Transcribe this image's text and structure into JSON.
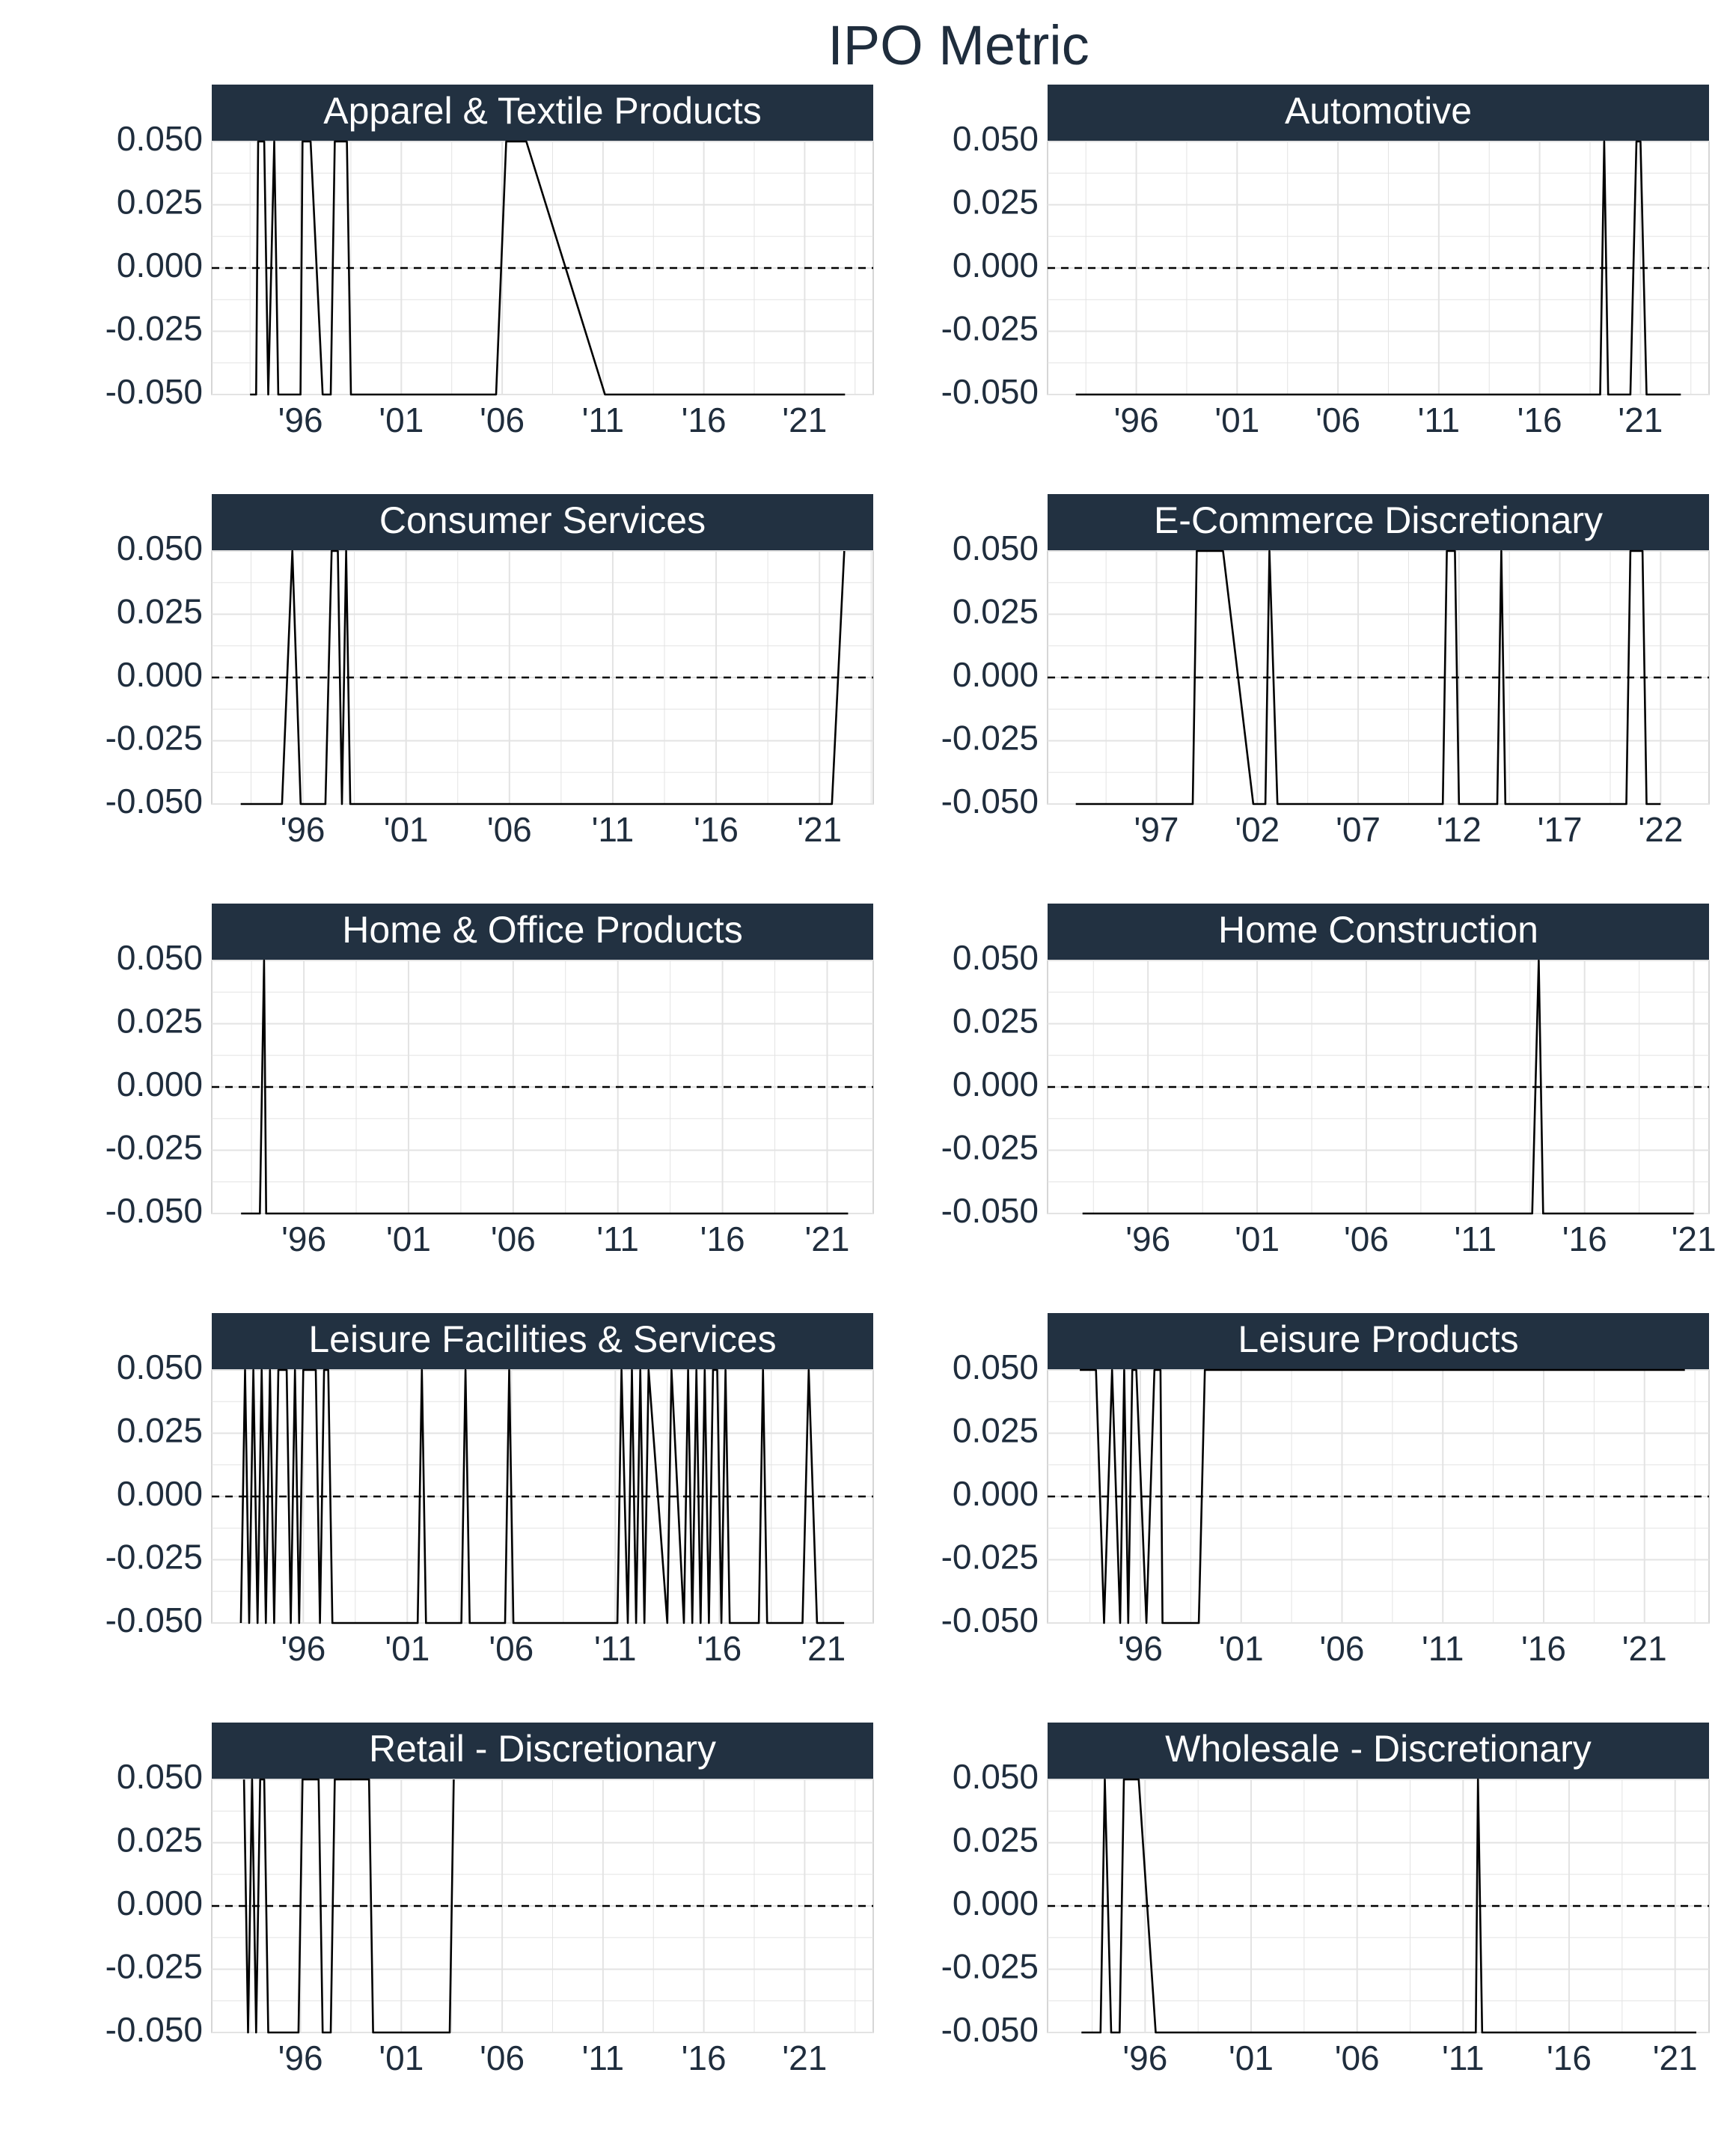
{
  "title": "IPO Metric",
  "colors": {
    "strip": "#223141",
    "text": "#1f2d3d",
    "line": "#000000",
    "grid": "#e3e3e3",
    "panel_border": "#c9c9c9",
    "zero_line": "#000000"
  },
  "chart_data": [
    {
      "type": "line",
      "panel": "Apparel & Textile Products",
      "ylim": [
        -0.05,
        0.05
      ],
      "xlim": [
        1991.6,
        2024.4
      ],
      "y_ticks": [
        0.05,
        0.025,
        0.0,
        -0.025,
        -0.05
      ],
      "y_tick_labels": [
        "0.050",
        "0.025",
        "0.000",
        "-0.025",
        "-0.050"
      ],
      "x_ticks": [
        1996,
        2001,
        2006,
        2011,
        2016,
        2021
      ],
      "x_tick_labels": [
        "'96",
        "'01",
        "'06",
        "'11",
        "'16",
        "'21"
      ],
      "reference_line": {
        "y": 0.0,
        "style": "dashed"
      },
      "series": [
        {
          "x": [
            1993.5,
            1993.8,
            1993.9,
            1994.2,
            1994.4,
            1994.7,
            1994.9,
            1996.0,
            1996.1,
            1996.5,
            1997.1,
            1997.5,
            1997.7,
            1998.3,
            1998.5,
            2005.7,
            2006.2,
            2007.2,
            2011.1,
            2023.0
          ],
          "y": [
            -0.05,
            -0.05,
            0.05,
            0.05,
            -0.05,
            0.05,
            -0.05,
            -0.05,
            0.05,
            0.05,
            -0.05,
            -0.05,
            0.05,
            0.05,
            -0.05,
            -0.05,
            0.05,
            0.05,
            -0.05,
            -0.05
          ]
        }
      ]
    },
    {
      "type": "line",
      "panel": "Automotive",
      "ylim": [
        -0.05,
        0.05
      ],
      "xlim": [
        1991.6,
        2024.4
      ],
      "y_ticks": [
        0.05,
        0.025,
        0.0,
        -0.025,
        -0.05
      ],
      "y_tick_labels": [
        "0.050",
        "0.025",
        "0.000",
        "-0.025",
        "-0.050"
      ],
      "x_ticks": [
        1996,
        2001,
        2006,
        2011,
        2016,
        2021
      ],
      "x_tick_labels": [
        "'96",
        "'01",
        "'06",
        "'11",
        "'16",
        "'21"
      ],
      "reference_line": {
        "y": 0.0,
        "style": "dashed"
      },
      "series": [
        {
          "x": [
            1993.0,
            2019.0,
            2019.2,
            2019.4,
            2020.5,
            2020.8,
            2021.0,
            2021.3,
            2023.0
          ],
          "y": [
            -0.05,
            -0.05,
            0.05,
            -0.05,
            -0.05,
            0.05,
            0.05,
            -0.05,
            -0.05
          ]
        }
      ]
    },
    {
      "type": "line",
      "panel": "Consumer Services",
      "ylim": [
        -0.05,
        0.05
      ],
      "xlim": [
        1991.6,
        2023.6
      ],
      "y_ticks": [
        0.05,
        0.025,
        0.0,
        -0.025,
        -0.05
      ],
      "y_tick_labels": [
        "0.050",
        "0.025",
        "0.000",
        "-0.025",
        "-0.050"
      ],
      "x_ticks": [
        1996,
        2001,
        2006,
        2011,
        2016,
        2021
      ],
      "x_tick_labels": [
        "'96",
        "'01",
        "'06",
        "'11",
        "'16",
        "'21"
      ],
      "reference_line": {
        "y": 0.0,
        "style": "dashed"
      },
      "series": [
        {
          "x": [
            1993.0,
            1995.0,
            1995.5,
            1995.9,
            1997.1,
            1997.4,
            1997.7,
            1997.9,
            1998.1,
            1998.3,
            2021.6,
            2022.2
          ],
          "y": [
            -0.05,
            -0.05,
            0.05,
            -0.05,
            -0.05,
            0.05,
            0.05,
            -0.05,
            0.05,
            -0.05,
            -0.05,
            0.05
          ]
        }
      ]
    },
    {
      "type": "line",
      "panel": "E-Commerce Discretionary",
      "ylim": [
        -0.05,
        0.05
      ],
      "xlim": [
        1991.6,
        2024.4
      ],
      "y_ticks": [
        0.05,
        0.025,
        0.0,
        -0.025,
        -0.05
      ],
      "y_tick_labels": [
        "0.050",
        "0.025",
        "0.000",
        "-0.025",
        "-0.050"
      ],
      "x_ticks": [
        1997,
        2002,
        2007,
        2012,
        2017,
        2022
      ],
      "x_tick_labels": [
        "'97",
        "'02",
        "'07",
        "'12",
        "'17",
        "'22"
      ],
      "reference_line": {
        "y": 0.0,
        "style": "dashed"
      },
      "series": [
        {
          "x": [
            1993.0,
            1998.8,
            1999.0,
            1999.2,
            2000.3,
            2001.8,
            2002.4,
            2002.6,
            2003.0,
            2004.0,
            2011.2,
            2011.4,
            2011.8,
            2012.0,
            2013.9,
            2014.1,
            2014.3,
            2020.3,
            2020.5,
            2021.1,
            2021.3,
            2022.0
          ],
          "y": [
            -0.05,
            -0.05,
            0.05,
            0.05,
            0.05,
            -0.05,
            -0.05,
            0.05,
            -0.05,
            -0.05,
            -0.05,
            0.05,
            0.05,
            -0.05,
            -0.05,
            0.05,
            -0.05,
            -0.05,
            0.05,
            0.05,
            -0.05,
            -0.05
          ]
        }
      ]
    },
    {
      "type": "line",
      "panel": "Home & Office Products",
      "ylim": [
        -0.05,
        0.05
      ],
      "xlim": [
        1991.6,
        2023.2
      ],
      "y_ticks": [
        0.05,
        0.025,
        0.0,
        -0.025,
        -0.05
      ],
      "y_tick_labels": [
        "0.050",
        "0.025",
        "0.000",
        "-0.025",
        "-0.050"
      ],
      "x_ticks": [
        1996,
        2001,
        2006,
        2011,
        2016,
        2021
      ],
      "x_tick_labels": [
        "'96",
        "'01",
        "'06",
        "'11",
        "'16",
        "'21"
      ],
      "reference_line": {
        "y": 0.0,
        "style": "dashed"
      },
      "series": [
        {
          "x": [
            1993.0,
            1993.9,
            1994.1,
            1994.2,
            2022.0
          ],
          "y": [
            -0.05,
            -0.05,
            0.05,
            -0.05,
            -0.05
          ]
        }
      ]
    },
    {
      "type": "line",
      "panel": "Home Construction",
      "ylim": [
        -0.05,
        0.05
      ],
      "xlim": [
        1991.4,
        2021.7
      ],
      "y_ticks": [
        0.05,
        0.025,
        0.0,
        -0.025,
        -0.05
      ],
      "y_tick_labels": [
        "0.050",
        "0.025",
        "0.000",
        "-0.025",
        "-0.050"
      ],
      "x_ticks": [
        1996,
        2001,
        2006,
        2011,
        2016,
        2021
      ],
      "x_tick_labels": [
        "'96",
        "'01",
        "'06",
        "'11",
        "'16",
        "'21"
      ],
      "reference_line": {
        "y": 0.0,
        "style": "dashed"
      },
      "series": [
        {
          "x": [
            1993.0,
            2013.6,
            2013.9,
            2014.1,
            2021.0
          ],
          "y": [
            -0.05,
            -0.05,
            0.05,
            -0.05,
            -0.05
          ]
        }
      ]
    },
    {
      "type": "line",
      "panel": "Leisure Facilities & Services",
      "ylim": [
        -0.05,
        0.05
      ],
      "xlim": [
        1991.6,
        2023.4
      ],
      "y_ticks": [
        0.05,
        0.025,
        0.0,
        -0.025,
        -0.05
      ],
      "y_tick_labels": [
        "0.050",
        "0.025",
        "0.000",
        "-0.025",
        "-0.050"
      ],
      "x_ticks": [
        1996,
        2001,
        2006,
        2011,
        2016,
        2021
      ],
      "x_tick_labels": [
        "'96",
        "'01",
        "'06",
        "'11",
        "'16",
        "'21"
      ],
      "reference_line": {
        "y": 0.0,
        "style": "dashed"
      },
      "series": [
        {
          "x": [
            1993.0,
            1993.2,
            1993.4,
            1993.6,
            1993.8,
            1994.0,
            1994.2,
            1994.4,
            1994.6,
            1994.8,
            1995.2,
            1995.4,
            1995.6,
            1995.8,
            1996.0,
            1996.6,
            1996.8,
            1997.0,
            1997.2,
            1997.4,
            1997.6,
            2001.5,
            2001.7,
            2001.9,
            2003.6,
            2003.8,
            2004.0,
            2005.7,
            2005.9,
            2006.1,
            2011.1,
            2011.3,
            2011.6,
            2011.8,
            2012.0,
            2012.2,
            2012.4,
            2012.6,
            2013.5,
            2013.7,
            2014.3,
            2014.5,
            2014.7,
            2014.9,
            2015.1,
            2015.3,
            2015.5,
            2015.7,
            2015.9,
            2016.1,
            2016.3,
            2016.5,
            2017.9,
            2018.1,
            2018.3,
            2020.0,
            2020.3,
            2020.7,
            2022.0
          ],
          "y": [
            -0.05,
            0.05,
            -0.05,
            0.05,
            -0.05,
            0.05,
            -0.05,
            0.05,
            -0.05,
            0.05,
            0.05,
            -0.05,
            0.05,
            -0.05,
            0.05,
            0.05,
            -0.05,
            0.05,
            0.05,
            -0.05,
            -0.05,
            -0.05,
            0.05,
            -0.05,
            -0.05,
            0.05,
            -0.05,
            -0.05,
            0.05,
            -0.05,
            -0.05,
            0.05,
            -0.05,
            0.05,
            -0.05,
            0.05,
            -0.05,
            0.05,
            -0.05,
            0.05,
            -0.05,
            0.05,
            -0.05,
            0.05,
            -0.05,
            0.05,
            -0.05,
            0.05,
            0.05,
            -0.05,
            0.05,
            -0.05,
            -0.05,
            0.05,
            -0.05,
            -0.05,
            0.05,
            -0.05,
            -0.05
          ]
        }
      ]
    },
    {
      "type": "line",
      "panel": "Leisure Products",
      "ylim": [
        -0.05,
        0.05
      ],
      "xlim": [
        1991.4,
        2024.2
      ],
      "y_ticks": [
        0.05,
        0.025,
        0.0,
        -0.025,
        -0.05
      ],
      "y_tick_labels": [
        "0.050",
        "0.025",
        "0.000",
        "-0.025",
        "-0.050"
      ],
      "x_ticks": [
        1996,
        2001,
        2006,
        2011,
        2016,
        2021
      ],
      "x_tick_labels": [
        "'96",
        "'01",
        "'06",
        "'11",
        "'16",
        "'21"
      ],
      "reference_line": {
        "y": 0.0,
        "style": "dashed"
      },
      "series": [
        {
          "x": [
            1993.0,
            1993.8,
            1994.2,
            1994.6,
            1995.0,
            1995.2,
            1995.4,
            1995.6,
            1995.8,
            1996.3,
            1996.7,
            1997.0,
            1997.1,
            1998.9,
            1999.2,
            2023.0
          ],
          "y": [
            0.05,
            0.05,
            -0.05,
            0.05,
            -0.05,
            0.05,
            -0.05,
            0.05,
            0.05,
            -0.05,
            0.05,
            0.05,
            -0.05,
            -0.05,
            0.05,
            0.05
          ]
        }
      ]
    },
    {
      "type": "line",
      "panel": "Retail - Discretionary",
      "ylim": [
        -0.05,
        0.05
      ],
      "xlim": [
        1991.6,
        2024.4
      ],
      "y_ticks": [
        0.05,
        0.025,
        0.0,
        -0.025,
        -0.05
      ],
      "y_tick_labels": [
        "0.050",
        "0.025",
        "0.000",
        "-0.025",
        "-0.050"
      ],
      "x_ticks": [
        1996,
        2001,
        2006,
        2011,
        2016,
        2021
      ],
      "x_tick_labels": [
        "'96",
        "'01",
        "'06",
        "'11",
        "'16",
        "'21"
      ],
      "reference_line": {
        "y": 0.0,
        "style": "dashed"
      },
      "series": [
        {
          "x": [
            1993.2,
            1993.4,
            1993.6,
            1993.8,
            1994.0,
            1994.2,
            1994.4,
            1994.6,
            1995.9,
            1996.1,
            1996.9,
            1997.1,
            1997.5,
            1997.7,
            1999.4,
            1999.6,
            2003.4,
            2003.6
          ],
          "y": [
            0.05,
            -0.05,
            0.05,
            -0.05,
            0.05,
            0.05,
            -0.05,
            -0.05,
            -0.05,
            0.05,
            0.05,
            -0.05,
            -0.05,
            0.05,
            0.05,
            -0.05,
            -0.05,
            0.05
          ]
        }
      ]
    },
    {
      "type": "line",
      "panel": "Wholesale - Discretionary",
      "ylim": [
        -0.05,
        0.05
      ],
      "xlim": [
        1991.4,
        2022.6
      ],
      "y_ticks": [
        0.05,
        0.025,
        0.0,
        -0.025,
        -0.05
      ],
      "y_tick_labels": [
        "0.050",
        "0.025",
        "0.000",
        "-0.025",
        "-0.050"
      ],
      "x_ticks": [
        1996,
        2001,
        2006,
        2011,
        2016,
        2021
      ],
      "x_tick_labels": [
        "'96",
        "'01",
        "'06",
        "'11",
        "'16",
        "'21"
      ],
      "reference_line": {
        "y": 0.0,
        "style": "dashed"
      },
      "series": [
        {
          "x": [
            1993.0,
            1993.9,
            1994.1,
            1994.4,
            1994.8,
            1995.0,
            1995.3,
            1995.7,
            1996.5,
            2011.6,
            2011.7,
            2011.9,
            2022.0
          ],
          "y": [
            -0.05,
            -0.05,
            0.05,
            -0.05,
            -0.05,
            0.05,
            0.05,
            0.05,
            -0.05,
            -0.05,
            0.05,
            -0.05,
            -0.05
          ]
        }
      ]
    }
  ]
}
